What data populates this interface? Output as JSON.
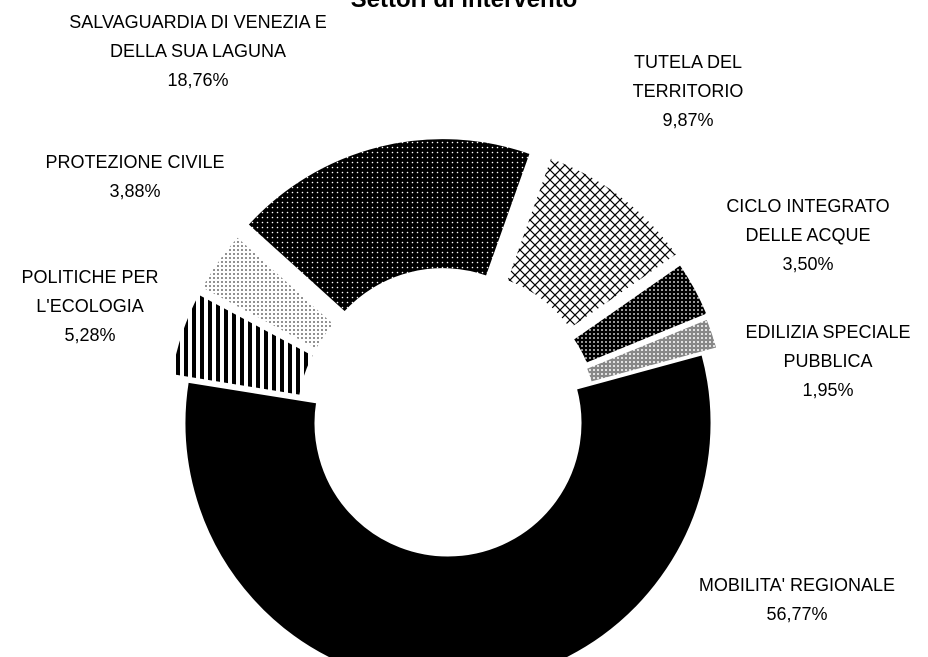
{
  "chart_data": {
    "type": "donut",
    "title": "Settori di intervento",
    "categories": [
      "SALVAGUARDIA DI VENEZIA E DELLA SUA LAGUNA",
      "TUTELA DEL TERRITORIO",
      "CICLO INTEGRATO DELLE ACQUE",
      "EDILIZIA SPECIALE PUBBLICA",
      "MOBILITA' REGIONALE",
      "POLITICHE PER L'ECOLOGIA",
      "PROTEZIONE CIVILE"
    ],
    "values": [
      18.76,
      9.87,
      3.5,
      1.95,
      56.77,
      5.28,
      3.88
    ],
    "value_labels": [
      "18,76%",
      "9,87%",
      "3,50%",
      "1,95%",
      "56,77%",
      "5,28%",
      "3,88%"
    ]
  }
}
